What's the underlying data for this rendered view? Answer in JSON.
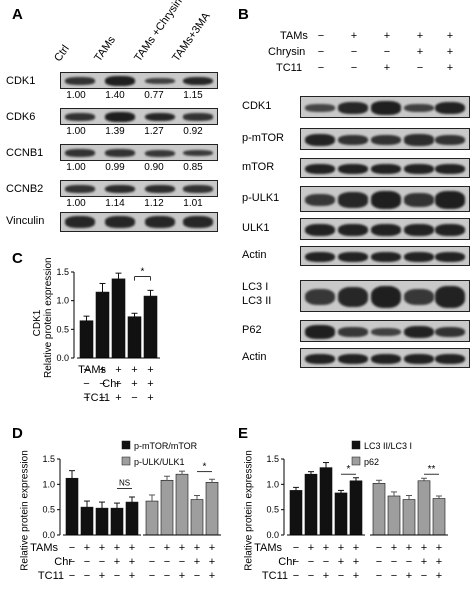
{
  "panelA": {
    "label": "A",
    "columns": [
      "Ctrl",
      "TAMs",
      "TAMs +Chrysin",
      "TAMs+3MA"
    ],
    "rows": [
      {
        "name": "CDK1",
        "values": [
          "1.00",
          "1.40",
          "0.77",
          "1.15"
        ],
        "intensity": [
          0.75,
          0.95,
          0.6,
          0.85
        ]
      },
      {
        "name": "CDK6",
        "values": [
          "1.00",
          "1.39",
          "1.27",
          "0.92"
        ],
        "intensity": [
          0.75,
          0.95,
          0.88,
          0.72
        ]
      },
      {
        "name": "CCNB1",
        "values": [
          "1.00",
          "0.99",
          "0.90",
          "0.85"
        ],
        "intensity": [
          0.75,
          0.75,
          0.7,
          0.68
        ]
      },
      {
        "name": "CCNB2",
        "values": [
          "1.00",
          "1.14",
          "1.12",
          "1.01"
        ],
        "intensity": [
          0.75,
          0.82,
          0.8,
          0.75
        ]
      },
      {
        "name": "Vinculin",
        "values": [],
        "intensity": [
          0.85,
          0.85,
          0.85,
          0.85
        ]
      }
    ]
  },
  "panelB": {
    "label": "B",
    "conditions": [
      {
        "name": "TAMs",
        "signs": [
          "−",
          "+",
          "+",
          "+",
          "+"
        ]
      },
      {
        "name": "Chrysin",
        "signs": [
          "−",
          "−",
          "−",
          "+",
          "+"
        ]
      },
      {
        "name": "TC11",
        "signs": [
          "−",
          "−",
          "+",
          "−",
          "+"
        ]
      }
    ],
    "blots": [
      {
        "name": "CDK1",
        "intensity": [
          0.55,
          0.85,
          0.95,
          0.6,
          0.9
        ]
      },
      {
        "name": "p-mTOR",
        "intensity": [
          0.9,
          0.75,
          0.75,
          0.8,
          0.75
        ]
      },
      {
        "name": "mTOR",
        "intensity": [
          0.9,
          0.9,
          0.9,
          0.9,
          0.9
        ]
      },
      {
        "name": "p-ULK1",
        "intensity": [
          0.7,
          0.85,
          0.95,
          0.75,
          0.95
        ]
      },
      {
        "name": "ULK1",
        "intensity": [
          0.9,
          0.9,
          0.9,
          0.9,
          0.9
        ]
      },
      {
        "name": "Actin",
        "intensity": [
          0.9,
          0.9,
          0.9,
          0.9,
          0.9
        ]
      },
      {
        "name": "LC3 I",
        "name2": "LC3 II",
        "intensity": [
          0.7,
          0.85,
          0.95,
          0.7,
          0.9
        ]
      },
      {
        "name": "P62",
        "intensity": [
          0.95,
          0.7,
          0.6,
          0.9,
          0.75
        ]
      },
      {
        "name": "Actin",
        "intensity": [
          0.9,
          0.9,
          0.9,
          0.9,
          0.9
        ]
      }
    ]
  },
  "panelC": {
    "label": "C",
    "ylabel_top": "CDK1",
    "ylabel": "Relative protein expression",
    "conditions": [
      {
        "name": "TAMs",
        "signs": [
          "−",
          "+",
          "+",
          "+",
          "+"
        ]
      },
      {
        "name": "Chr",
        "signs": [
          "−",
          "−",
          "−",
          "+",
          "+"
        ]
      },
      {
        "name": "TC11",
        "signs": [
          "−",
          "−",
          "+",
          "−",
          "+"
        ]
      }
    ],
    "sig": "*"
  },
  "panelD": {
    "label": "D",
    "ylabel": "Relative protein expression",
    "legend": [
      "p-mTOR/mTOR",
      "p-ULK/ULK1"
    ],
    "conditions": [
      {
        "name": "TAMs",
        "signs": [
          "−",
          "+",
          "+",
          "+",
          "+",
          "−",
          "+",
          "+",
          "+",
          "+"
        ]
      },
      {
        "name": "Chr",
        "signs": [
          "−",
          "−",
          "−",
          "+",
          "+",
          "−",
          "−",
          "−",
          "+",
          "+"
        ]
      },
      {
        "name": "TC11",
        "signs": [
          "−",
          "−",
          "+",
          "−",
          "+",
          "−",
          "−",
          "+",
          "−",
          "+"
        ]
      }
    ],
    "sig": [
      "NS",
      "*"
    ]
  },
  "panelE": {
    "label": "E",
    "ylabel": "Relative protein expression",
    "legend": [
      "LC3 II/LC3 I",
      "p62"
    ],
    "conditions": [
      {
        "name": "TAMs",
        "signs": [
          "−",
          "+",
          "+",
          "+",
          "+",
          "−",
          "+",
          "+",
          "+",
          "+"
        ]
      },
      {
        "name": "Chr",
        "signs": [
          "−",
          "−",
          "−",
          "+",
          "+",
          "−",
          "−",
          "−",
          "+",
          "+"
        ]
      },
      {
        "name": "TC11",
        "signs": [
          "−",
          "−",
          "+",
          "−",
          "+",
          "−",
          "−",
          "+",
          "−",
          "+"
        ]
      }
    ],
    "sig": [
      "*",
      "**"
    ]
  },
  "chart_data": [
    {
      "type": "bar",
      "panel": "C",
      "title": "",
      "ylabel": "CDK1 Relative protein expression",
      "ylim": [
        0,
        1.5
      ],
      "yticks": [
        "0.0",
        "0.5",
        "1.0",
        "1.5"
      ],
      "series": [
        {
          "values": [
            0.65,
            1.15,
            1.38,
            0.72,
            1.08
          ],
          "errors": [
            0.08,
            0.15,
            0.1,
            0.06,
            0.1
          ],
          "color": "#111111"
        }
      ]
    },
    {
      "type": "bar",
      "panel": "D",
      "ylabel": "Relative protein expression",
      "ylim": [
        0,
        1.5
      ],
      "yticks": [
        "0.0",
        "0.5",
        "1.0",
        "1.5"
      ],
      "series": [
        {
          "name": "p-mTOR/mTOR",
          "values": [
            1.12,
            0.55,
            0.53,
            0.53,
            0.65
          ],
          "errors": [
            0.15,
            0.12,
            0.12,
            0.1,
            0.1
          ],
          "color": "#111111"
        },
        {
          "name": "p-ULK/ULK1",
          "values": [
            0.67,
            1.08,
            1.2,
            0.7,
            1.04
          ],
          "errors": [
            0.12,
            0.08,
            0.06,
            0.08,
            0.06
          ],
          "color": "#9e9e9e"
        }
      ]
    },
    {
      "type": "bar",
      "panel": "E",
      "ylabel": "Relative protein expression",
      "ylim": [
        0,
        1.5
      ],
      "yticks": [
        "0.0",
        "0.5",
        "1.0",
        "1.5"
      ],
      "series": [
        {
          "name": "LC3 II/LC3 I",
          "values": [
            0.88,
            1.2,
            1.33,
            0.83,
            1.07
          ],
          "errors": [
            0.06,
            0.05,
            0.1,
            0.05,
            0.06
          ],
          "color": "#111111"
        },
        {
          "name": "p62",
          "values": [
            1.02,
            0.77,
            0.7,
            1.07,
            0.72
          ],
          "errors": [
            0.06,
            0.08,
            0.08,
            0.05,
            0.05
          ],
          "color": "#9e9e9e"
        }
      ]
    }
  ]
}
